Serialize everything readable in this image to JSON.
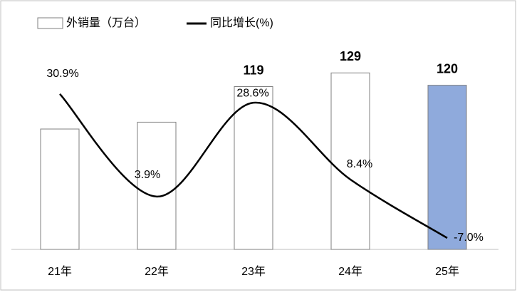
{
  "chart_data": {
    "type": "bar-line",
    "categories": [
      "21年",
      "22年",
      "23年",
      "24年",
      "25年"
    ],
    "series": [
      {
        "name": "外销量（万台）",
        "type": "bar",
        "color": "#ffffff",
        "edge_color": "#7f7f7f",
        "colors": [
          "#ffffff",
          "#ffffff",
          "#ffffff",
          "#ffffff",
          "#8faadc"
        ],
        "values": [
          88,
          93,
          119,
          129,
          120
        ],
        "show_value_labels": [
          false,
          false,
          true,
          true,
          true
        ]
      },
      {
        "name": "同比增长(%)",
        "type": "line",
        "axis": "y2",
        "color": "#000000",
        "smooth": true,
        "values": [
          30.9,
          3.9,
          28.6,
          8.4,
          -7.0
        ],
        "value_labels": [
          "30.9%",
          "3.9%",
          "28.6%",
          "8.4%",
          "-7.0%"
        ]
      }
    ],
    "ylim": [
      0,
      150
    ],
    "y2lim": [
      -10,
      44
    ],
    "grid": false,
    "legend": "top-left"
  }
}
